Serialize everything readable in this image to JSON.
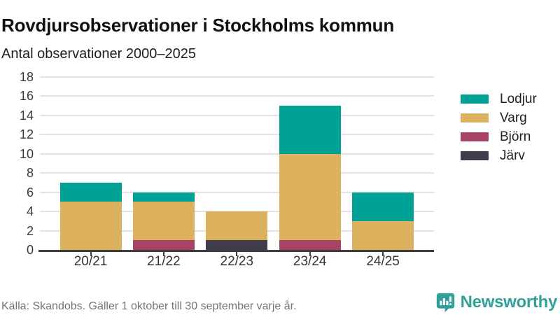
{
  "header": {
    "title": "Rovdjursobservationer i Stockholms kommun",
    "subtitle": "Antal observationer 2000–2025"
  },
  "chart_data": {
    "type": "bar",
    "stacked": true,
    "title": "Rovdjursobservationer i Stockholms kommun",
    "subtitle": "Antal observationer 2000–2025",
    "categories": [
      "20/21",
      "21/22",
      "22/23",
      "23/24",
      "24/25"
    ],
    "series": [
      {
        "name": "Lodjur",
        "color": "#00a296",
        "values": [
          2,
          1,
          0,
          5,
          3
        ]
      },
      {
        "name": "Varg",
        "color": "#ddb25f",
        "values": [
          5,
          4,
          3,
          9,
          3
        ]
      },
      {
        "name": "Björn",
        "color": "#a84364",
        "values": [
          0,
          1,
          0,
          1,
          0
        ]
      },
      {
        "name": "Järv",
        "color": "#403c4b",
        "values": [
          0,
          0,
          1,
          0,
          0
        ]
      }
    ],
    "stack_order_bottom_up": [
      "Järv",
      "Björn",
      "Varg",
      "Lodjur"
    ],
    "totals": [
      7,
      6,
      4,
      15,
      6
    ],
    "ylim": [
      0,
      18
    ],
    "ytick_step": 2,
    "grid": true,
    "legend_position": "right",
    "colors": {
      "gridline": "#e3e3e3",
      "axis": "#3d3d3d"
    }
  },
  "footer": {
    "source": "Källa: Skandobs. Gäller 1 oktober till 30 september varje år."
  },
  "branding": {
    "name": "Newsworthy",
    "color": "#31a09c"
  }
}
